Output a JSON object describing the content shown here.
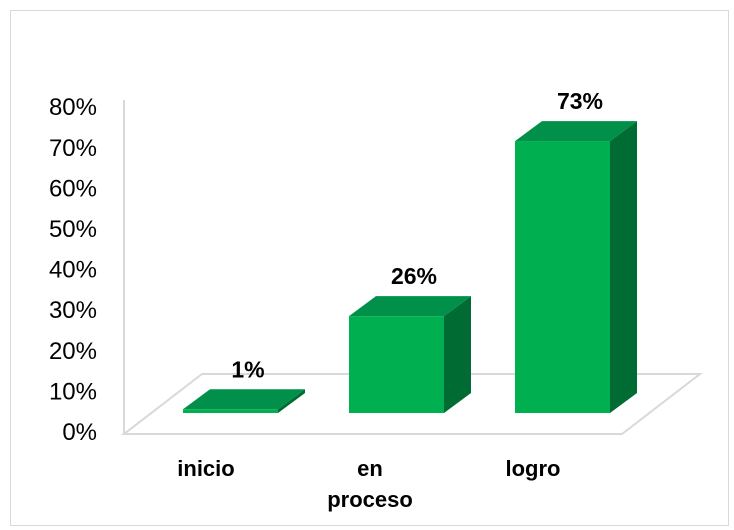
{
  "chart_data": {
    "type": "bar",
    "style": "3d-column",
    "categories": [
      "inicio",
      "en proceso",
      "logro"
    ],
    "category_lines": [
      [
        "inicio"
      ],
      [
        "en",
        "proceso"
      ],
      [
        "logro"
      ]
    ],
    "values": [
      1,
      26,
      73
    ],
    "data_labels": [
      "1%",
      "26%",
      "73%"
    ],
    "yticks": [
      "0%",
      "10%",
      "20%",
      "30%",
      "40%",
      "50%",
      "60%",
      "70%",
      "80%"
    ],
    "ylim": [
      0,
      80
    ],
    "grid": false,
    "legend": "none",
    "title": "",
    "xlabel": "",
    "ylabel": ""
  },
  "colors": {
    "bar_front": "#00B050",
    "bar_top": "#00904A",
    "bar_side": "#006B33",
    "axis_wall": "#d9d9d9"
  }
}
